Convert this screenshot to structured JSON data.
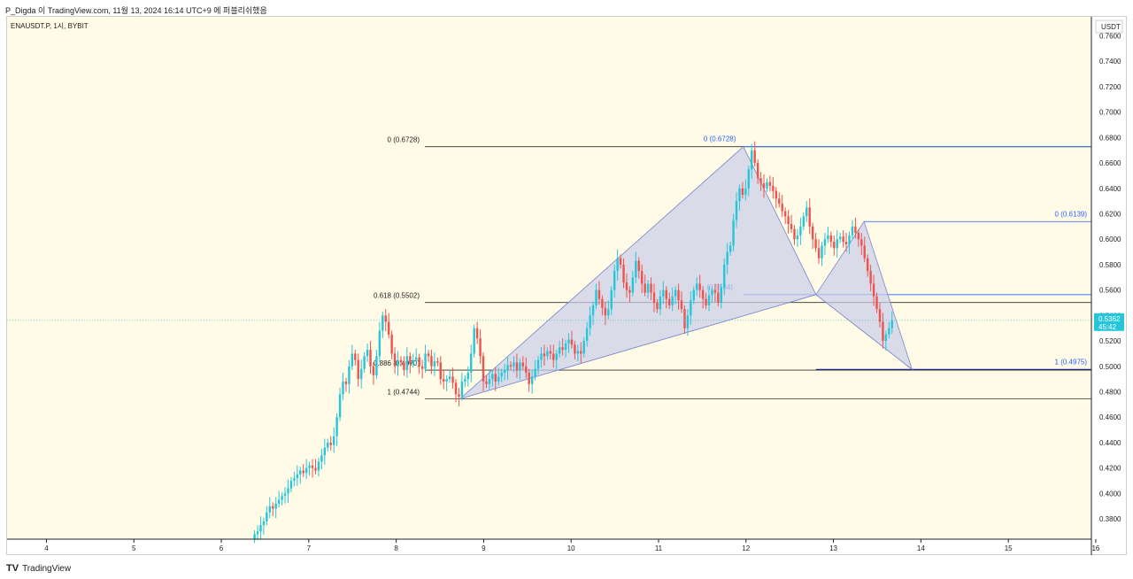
{
  "header": {
    "text": "P_Digda 이 TradingView.com, 11월 13, 2024 16:14 UTC+9 에 퍼블리쉬했음"
  },
  "footer": {
    "logo": "TV",
    "brand": "TradingView"
  },
  "colors": {
    "bg": "#fffbe6",
    "up": "#26c6da",
    "down": "#ef5350",
    "pattern": "#c9cfe8",
    "blue": "#2962ff",
    "dark": "#222222"
  },
  "chart_data": {
    "type": "candlestick",
    "symbol": "ENAUSDT.P, 1시, BYBIT",
    "currency": "USDT",
    "last_price": "0.5362",
    "countdown": "45:42",
    "y_ticks": [
      "0.7600",
      "0.7400",
      "0.7200",
      "0.7000",
      "0.6800",
      "0.6600",
      "0.6400",
      "0.6200",
      "0.6000",
      "0.5800",
      "0.5600",
      "0.5400",
      "0.5200",
      "0.5000",
      "0.4800",
      "0.4600",
      "0.4400",
      "0.4200",
      "0.4000",
      "0.3800"
    ],
    "ylim": [
      0.364,
      0.775
    ],
    "x_ticks": [
      "4",
      "5",
      "6",
      "7",
      "8",
      "9",
      "10",
      "11",
      "12",
      "13",
      "14",
      "15",
      "16"
    ],
    "xlim": [
      3.55,
      15.95
    ],
    "fib_left": [
      {
        "label": "0 (0.6728)",
        "value": 0.6728
      },
      {
        "label": "0.618 (0.5502)",
        "value": 0.5502
      },
      {
        "label": "0.886 (0.4970)",
        "value": 0.497
      },
      {
        "label": "1 (0.4744)",
        "value": 0.4744
      }
    ],
    "fib_right": [
      {
        "label": "0 (0.6728)",
        "value": 0.6728
      },
      {
        "label": "0 (0.6139)",
        "value": 0.6139
      },
      {
        "label": "(0.5564)",
        "value": 0.5564
      },
      {
        "label": "1 (0.4975)",
        "value": 0.4975
      }
    ],
    "pattern_points": [
      {
        "x": 8.73,
        "y": 0.4744
      },
      {
        "x": 11.97,
        "y": 0.6728
      },
      {
        "x": 12.8,
        "y": 0.5564
      },
      {
        "x": 13.35,
        "y": 0.6139
      },
      {
        "x": 13.9,
        "y": 0.4975
      }
    ],
    "candles_close": [
      0.368,
      0.37,
      0.375,
      0.378,
      0.385,
      0.39,
      0.388,
      0.392,
      0.395,
      0.398,
      0.4,
      0.404,
      0.41,
      0.412,
      0.415,
      0.418,
      0.416,
      0.42,
      0.422,
      0.42,
      0.418,
      0.425,
      0.43,
      0.436,
      0.44,
      0.438,
      0.445,
      0.46,
      0.478,
      0.488,
      0.486,
      0.5,
      0.51,
      0.505,
      0.49,
      0.498,
      0.508,
      0.513,
      0.5,
      0.493,
      0.508,
      0.528,
      0.54,
      0.535,
      0.525,
      0.51,
      0.5,
      0.505,
      0.503,
      0.497,
      0.508,
      0.502,
      0.505,
      0.507,
      0.5,
      0.498,
      0.51,
      0.508,
      0.5,
      0.504,
      0.503,
      0.49,
      0.488,
      0.49,
      0.492,
      0.487,
      0.478,
      0.476,
      0.488,
      0.49,
      0.495,
      0.51,
      0.53,
      0.522,
      0.508,
      0.488,
      0.486,
      0.49,
      0.494,
      0.488,
      0.492,
      0.495,
      0.497,
      0.501,
      0.5,
      0.503,
      0.497,
      0.503,
      0.5,
      0.495,
      0.486,
      0.492,
      0.498,
      0.505,
      0.51,
      0.508,
      0.512,
      0.51,
      0.505,
      0.51,
      0.515,
      0.513,
      0.518,
      0.521,
      0.517,
      0.51,
      0.512,
      0.51,
      0.52,
      0.53,
      0.54,
      0.548,
      0.56,
      0.553,
      0.546,
      0.54,
      0.545,
      0.56,
      0.575,
      0.585,
      0.58,
      0.566,
      0.56,
      0.558,
      0.57,
      0.583,
      0.575,
      0.565,
      0.558,
      0.565,
      0.558,
      0.55,
      0.545,
      0.555,
      0.56,
      0.553,
      0.548,
      0.555,
      0.56,
      0.552,
      0.545,
      0.53,
      0.54,
      0.552,
      0.56,
      0.565,
      0.56,
      0.553,
      0.548,
      0.556,
      0.56,
      0.558,
      0.55,
      0.562,
      0.58,
      0.59,
      0.595,
      0.615,
      0.63,
      0.64,
      0.635,
      0.64,
      0.655,
      0.67,
      0.66,
      0.648,
      0.644,
      0.64,
      0.645,
      0.642,
      0.638,
      0.632,
      0.628,
      0.622,
      0.618,
      0.612,
      0.608,
      0.6,
      0.603,
      0.61,
      0.618,
      0.625,
      0.61,
      0.6,
      0.593,
      0.585,
      0.595,
      0.6,
      0.603,
      0.598,
      0.593,
      0.6,
      0.602,
      0.598,
      0.596,
      0.603,
      0.61,
      0.605,
      0.6,
      0.595,
      0.585,
      0.575,
      0.565,
      0.555,
      0.545,
      0.535,
      0.52,
      0.525,
      0.53,
      0.5362
    ]
  }
}
